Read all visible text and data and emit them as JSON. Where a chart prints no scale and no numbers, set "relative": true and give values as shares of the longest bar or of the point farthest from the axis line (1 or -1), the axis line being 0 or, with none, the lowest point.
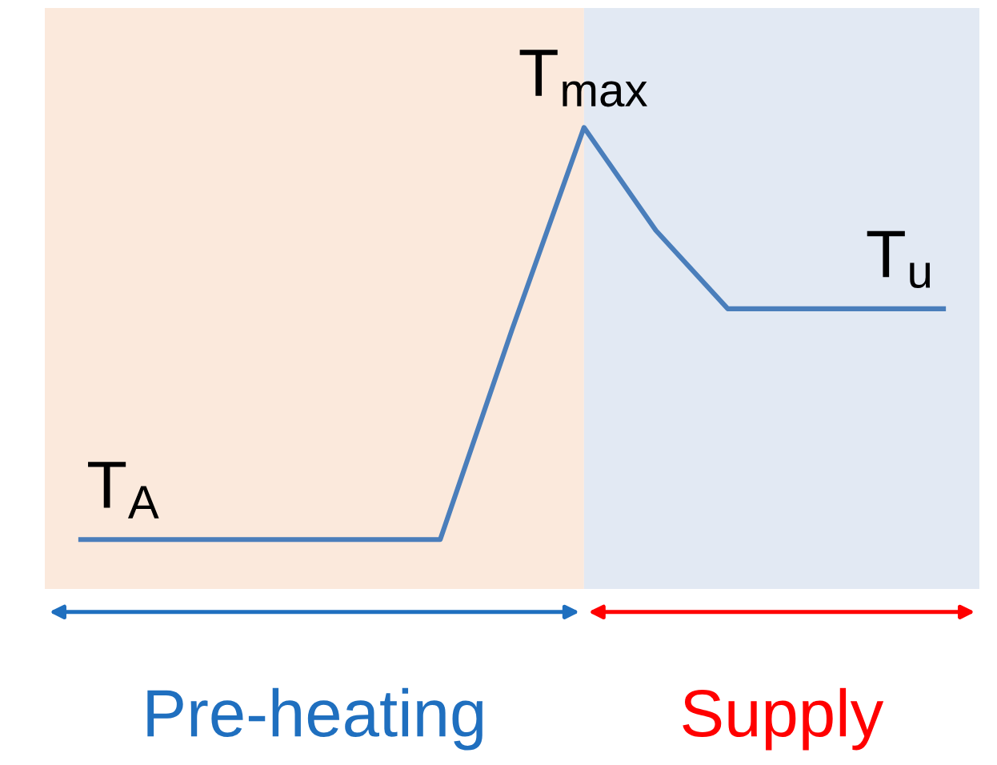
{
  "chart_data": {
    "type": "line",
    "relative": true,
    "categories": [
      null,
      null,
      null,
      null,
      null,
      null,
      null,
      null,
      null,
      null,
      null,
      null,
      null
    ],
    "series": [
      {
        "color": "#4a7ebb",
        "values": [
          0,
          0,
          0,
          0,
          0,
          0,
          0.51,
          1,
          0.75,
          0.56,
          0.56,
          0.56,
          0.56
        ]
      }
    ],
    "annotations": [
      {
        "text": "T$_{A}$",
        "y": 0
      },
      {
        "text": "T$_{max}$",
        "y": 1
      },
      {
        "text": "T$_{u}$",
        "y": 0.56
      },
      "Pre-heating",
      "Supply"
    ],
    "legend": false,
    "marker": "none",
    "line_style": "solid"
  }
}
